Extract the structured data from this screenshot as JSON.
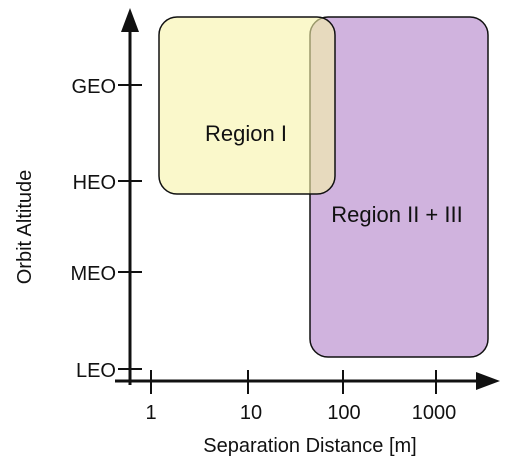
{
  "diagram": {
    "y_axis": {
      "title": "Orbit Altitude",
      "ticks": [
        {
          "id": "leo",
          "label": "LEO"
        },
        {
          "id": "meo",
          "label": "MEO"
        },
        {
          "id": "heo",
          "label": "HEO"
        },
        {
          "id": "geo",
          "label": "GEO"
        }
      ]
    },
    "x_axis": {
      "title": "Separation Distance [m]",
      "scale": "log",
      "ticks": [
        {
          "id": "1",
          "label": "1"
        },
        {
          "id": "10",
          "label": "10"
        },
        {
          "id": "100",
          "label": "100"
        },
        {
          "id": "1000",
          "label": "1000"
        }
      ]
    },
    "regions": [
      {
        "id": "region-1",
        "label": "Region I",
        "fill": "#f6f3b0"
      },
      {
        "id": "region-2-3",
        "label": "Region II + III",
        "fill": "#c8a6d8"
      }
    ]
  }
}
